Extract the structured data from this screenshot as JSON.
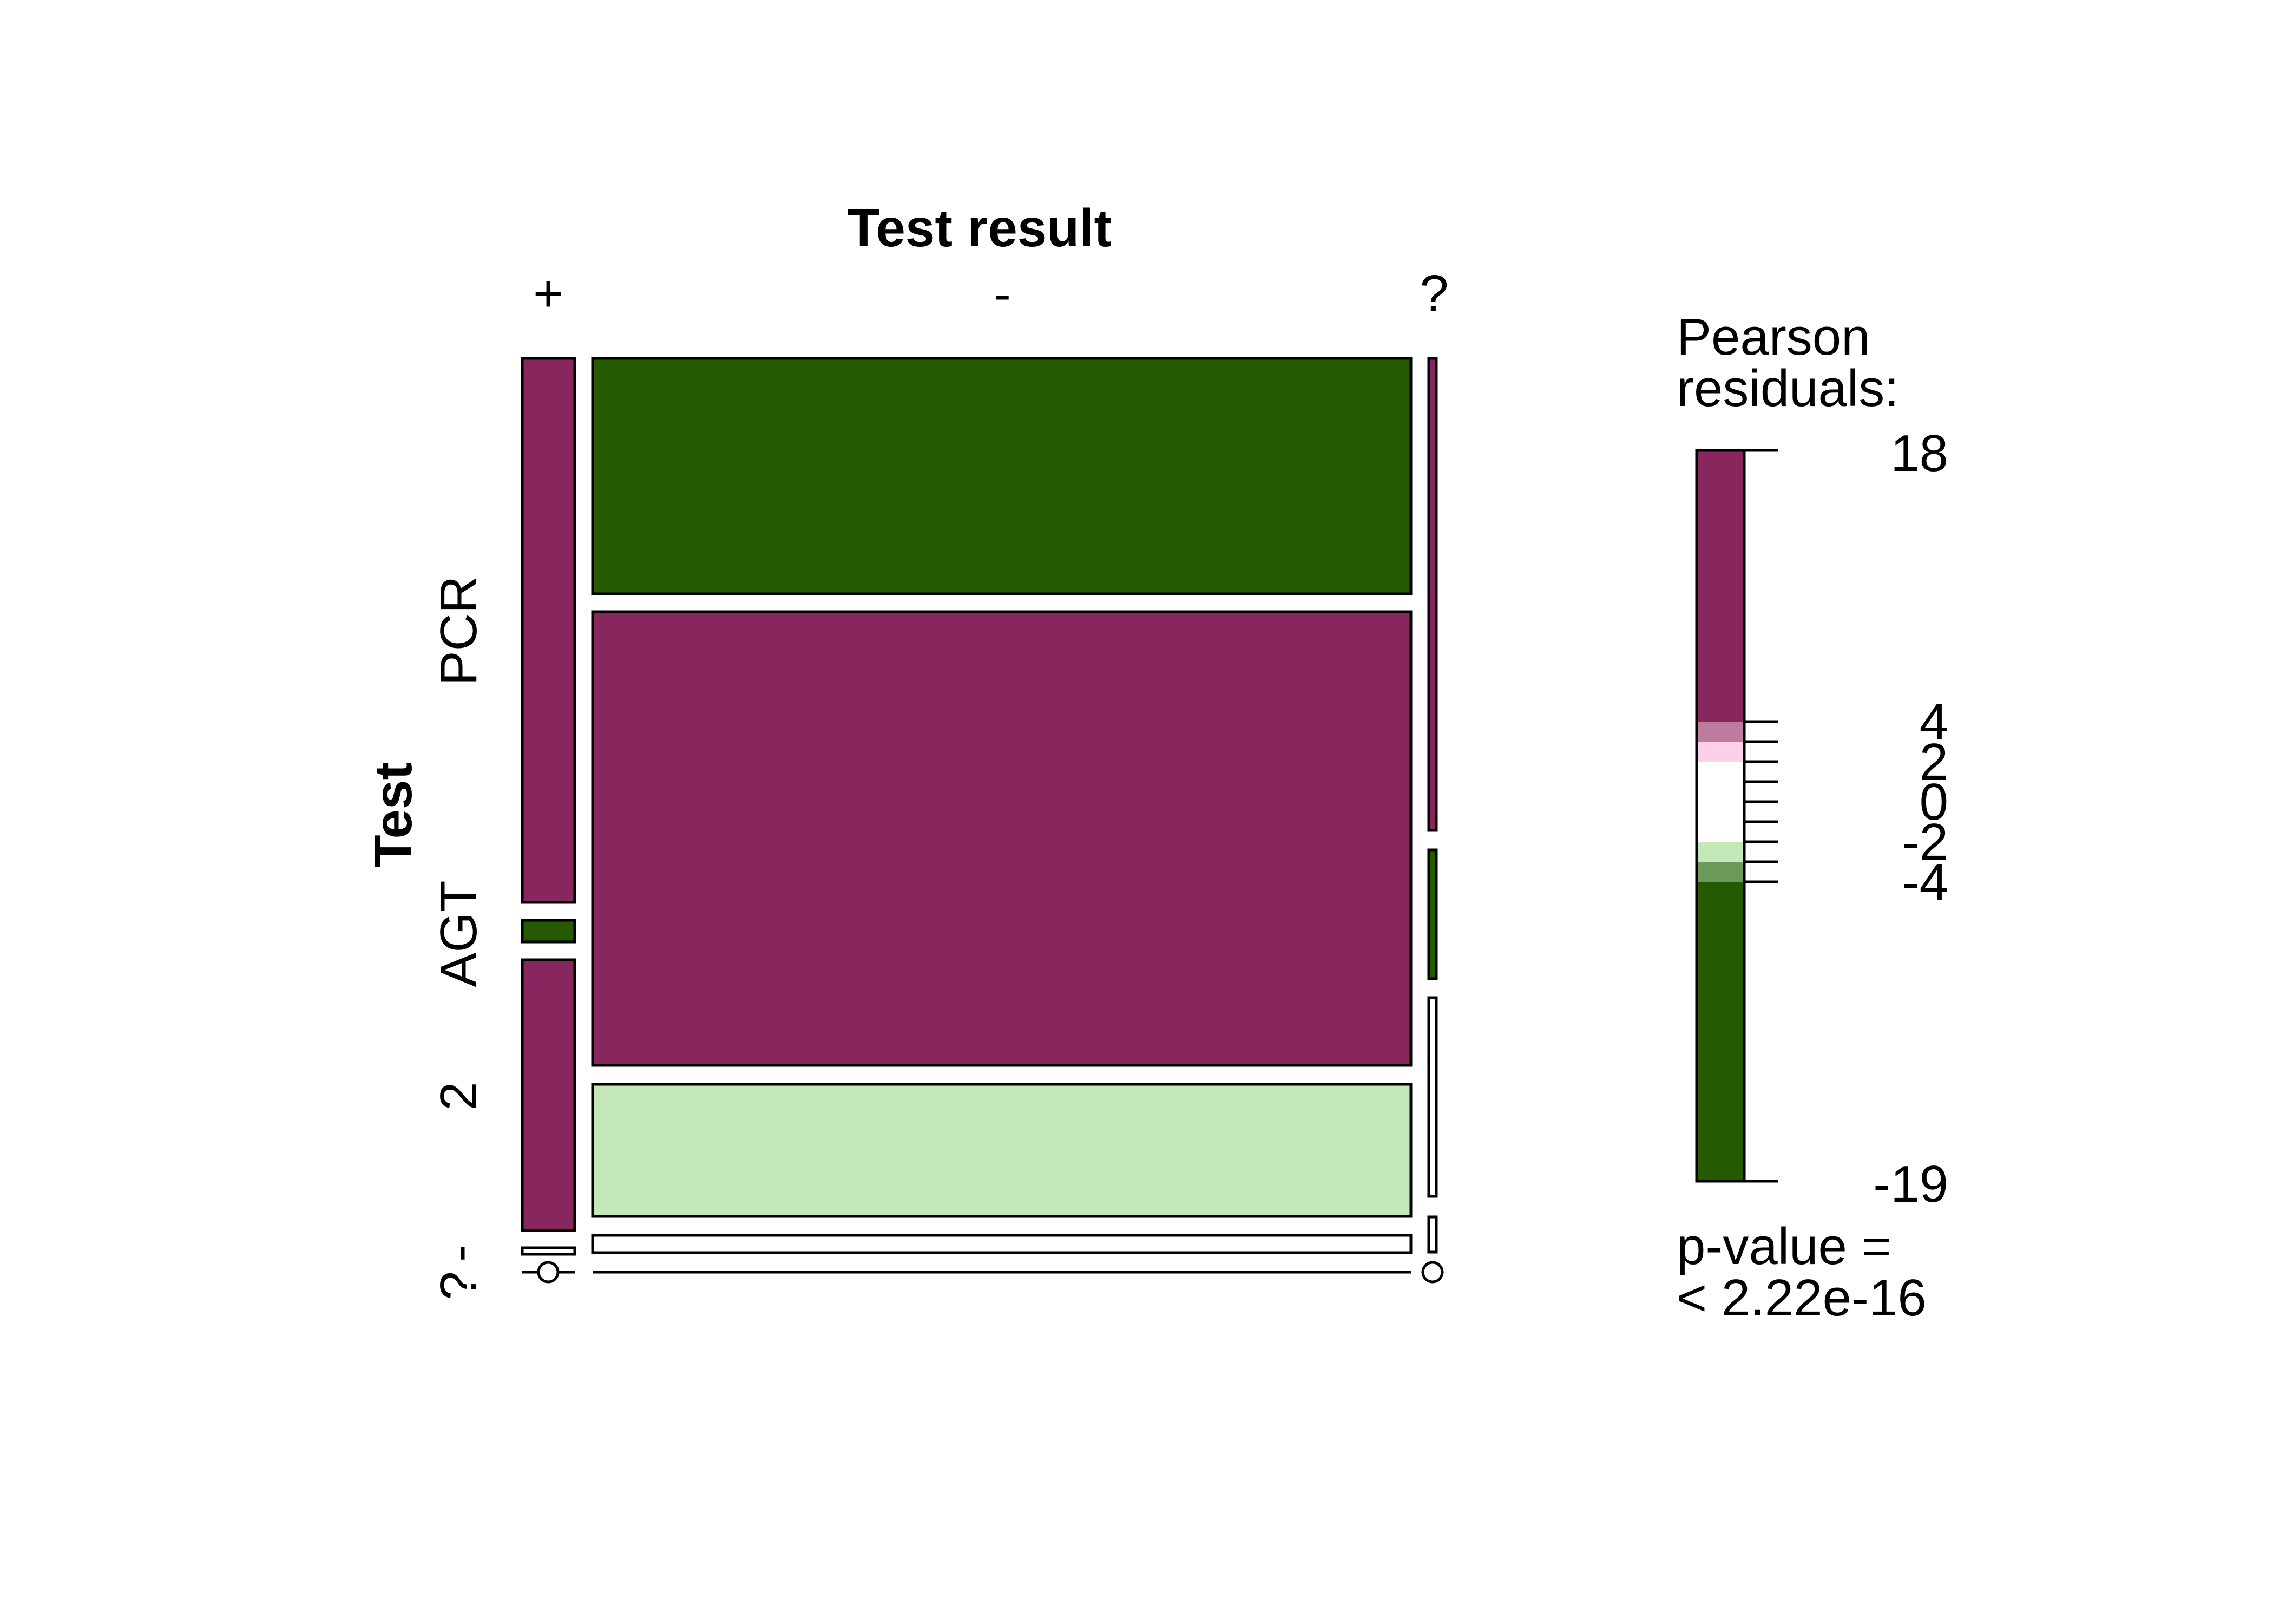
{
  "chart_data": {
    "type": "mosaic",
    "title": "",
    "column_variable": "Test result",
    "row_variable": "Test",
    "columns": [
      "+",
      "-",
      "?"
    ],
    "rows": [
      "PCR",
      "AGT",
      "2",
      "-",
      "?"
    ],
    "residuals": [
      [
        18,
        -19,
        8
      ],
      [
        -6,
        15,
        -5
      ],
      [
        12,
        -3,
        0
      ],
      [
        0,
        0,
        0
      ],
      [
        0,
        0,
        0
      ]
    ],
    "proportions": {
      "column_share": [
        0.065,
        0.915,
        0.01
      ],
      "row_share_within_column": [
        [
          0.64,
          0.024,
          0.318,
          0.009,
          0.0
        ],
        [
          0.262,
          0.508,
          0.15,
          0.02,
          0.0
        ],
        [
          0.53,
          0.15,
          0.22,
          0.04,
          0.0
        ]
      ]
    },
    "legend": {
      "title_line1": "Pearson",
      "title_line2": "residuals:",
      "max": 18,
      "min": -19,
      "ticks": [
        "18",
        "4",
        "2",
        "0",
        "-2",
        "-4",
        "-19"
      ],
      "pvalue_line1": "p-value =",
      "pvalue_line2": "< 2.22e-16"
    },
    "colors": {
      "strong_positive": "#88275e",
      "weak_positive": "#bd7c9e",
      "faint_positive": "#fcd1e8",
      "neutral": "#ffffff",
      "faint_negative": "#c4e8b8",
      "weak_negative": "#6b9a5a",
      "strong_negative": "#255a00"
    }
  }
}
